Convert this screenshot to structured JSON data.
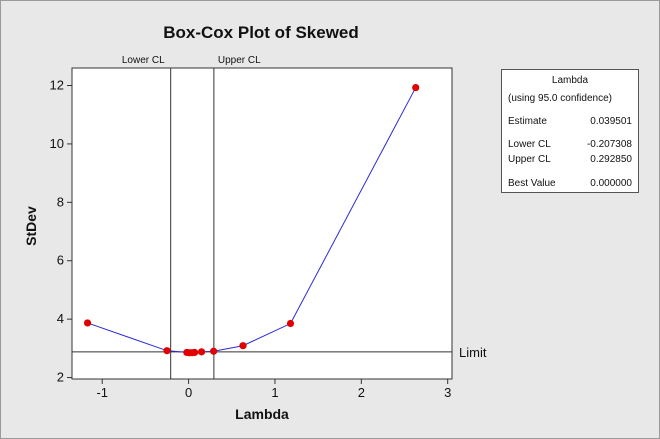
{
  "chart_data": {
    "type": "line",
    "title": "Box-Cox Plot of Skewed",
    "xlabel": "Lambda",
    "ylabel": "StDev",
    "xlim": [
      -1.35,
      3.05
    ],
    "ylim": [
      1.95,
      12.6
    ],
    "xticks": [
      -1,
      0,
      1,
      2,
      3
    ],
    "yticks": [
      2,
      4,
      6,
      8,
      10,
      12
    ],
    "grid": false,
    "series": [
      {
        "x": [
          -1.17,
          -0.25,
          -0.02,
          0.01,
          0.04,
          0.07,
          0.15,
          0.29,
          0.63,
          1.18,
          2.63
        ],
        "y": [
          3.87,
          2.92,
          2.86,
          2.85,
          2.85,
          2.86,
          2.88,
          2.9,
          3.09,
          3.85,
          11.93
        ],
        "color": "#2b2bd6",
        "marker_color": "#e00000"
      }
    ],
    "vlines": [
      {
        "x": -0.207308,
        "label": "Lower CL"
      },
      {
        "x": 0.29285,
        "label": "Upper CL"
      }
    ],
    "hline": {
      "y": 2.88,
      "label": "Limit"
    }
  },
  "legend": {
    "heading": "Lambda",
    "subheading": "(using 95.0 confidence)",
    "rows": [
      {
        "label": "Estimate",
        "value": "0.039501"
      },
      {
        "label": "Lower CL",
        "value": "-0.207308"
      },
      {
        "label": "Upper CL",
        "value": "0.292850"
      },
      {
        "label": "Best Value",
        "value": "0.000000"
      }
    ]
  }
}
